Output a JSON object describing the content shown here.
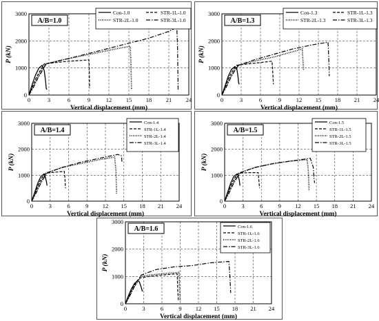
{
  "chart_data": [
    {
      "type": "line",
      "title": "A/B=1.0",
      "xlabel": "Vertical displacement (mm)",
      "ylabel": "P (kN)",
      "xlim": [
        0,
        24
      ],
      "ylim": [
        0,
        3000
      ],
      "xticks": [
        0,
        3,
        6,
        9,
        12,
        15,
        18,
        21,
        24
      ],
      "yticks": [
        0,
        1000,
        2000,
        3000
      ],
      "grid": true,
      "legend_position": "top-right",
      "legend_columns": 2,
      "series": [
        {
          "name": "Con-1.0",
          "style": "solid",
          "x": [
            0,
            0.5,
            1.0,
            1.5,
            2.0,
            2.3,
            2.5,
            2.6,
            2.7
          ],
          "y": [
            0,
            400,
            750,
            1000,
            1100,
            900,
            500,
            250,
            200
          ]
        },
        {
          "name": "STR-1L-1.0",
          "style": "dashed",
          "x": [
            0,
            0.6,
            1.2,
            1.8,
            2.3,
            4,
            6,
            8,
            9,
            9.05,
            9.1
          ],
          "y": [
            0,
            350,
            700,
            950,
            1150,
            1200,
            1250,
            1280,
            1300,
            1000,
            250
          ]
        },
        {
          "name": "STR-2L-1.0",
          "style": "dotted",
          "x": [
            0,
            0.7,
            1.4,
            2.0,
            2.5,
            5,
            8,
            11,
            14,
            15.2,
            15.3,
            15.4
          ],
          "y": [
            0,
            350,
            700,
            950,
            1150,
            1300,
            1450,
            1600,
            1750,
            1800,
            1300,
            200
          ]
        },
        {
          "name": "STR-3L-1.0",
          "style": "dashdot",
          "x": [
            0,
            0.7,
            1.4,
            2.0,
            2.6,
            6,
            10,
            14,
            18,
            21,
            22.2,
            22.3,
            22.4
          ],
          "y": [
            0,
            300,
            650,
            900,
            1150,
            1350,
            1600,
            1850,
            2100,
            2350,
            2500,
            1800,
            200
          ]
        }
      ]
    },
    {
      "type": "line",
      "title": "A/B=1.3",
      "xlabel": "Vertical displacement (mm)",
      "ylabel": "P (kN)",
      "xlim": [
        0,
        24
      ],
      "ylim": [
        0,
        3000
      ],
      "xticks": [
        0,
        3,
        6,
        9,
        12,
        15,
        18,
        21,
        24
      ],
      "yticks": [
        0,
        1000,
        2000,
        3000
      ],
      "grid": true,
      "legend_position": "top-right",
      "legend_columns": 2,
      "series": [
        {
          "name": "Con-1.3",
          "style": "solid",
          "x": [
            0,
            0.5,
            1.0,
            1.5,
            2.0,
            2.3,
            2.5,
            2.6,
            2.7
          ],
          "y": [
            0,
            350,
            700,
            950,
            1050,
            1000,
            700,
            450,
            400
          ]
        },
        {
          "name": "STR-1L-1.3",
          "style": "dashed",
          "x": [
            0,
            0.6,
            1.2,
            1.8,
            2.3,
            4,
            6,
            7.8,
            7.9,
            8.0
          ],
          "y": [
            0,
            350,
            700,
            950,
            1100,
            1150,
            1200,
            1250,
            900,
            400
          ]
        },
        {
          "name": "STR-2L-1.3",
          "style": "dotted",
          "x": [
            0,
            0.7,
            1.4,
            2.0,
            2.5,
            5,
            8,
            11,
            12.5,
            12.6,
            12.7
          ],
          "y": [
            0,
            350,
            700,
            950,
            1100,
            1250,
            1400,
            1600,
            1700,
            1300,
            900
          ]
        },
        {
          "name": "STR-3L-1.3",
          "style": "dashdot",
          "x": [
            0,
            0.7,
            1.4,
            2.0,
            2.6,
            5,
            8,
            11,
            14,
            16.5,
            16.6,
            16.7
          ],
          "y": [
            0,
            300,
            650,
            900,
            1100,
            1300,
            1500,
            1700,
            1850,
            1950,
            1500,
            700
          ]
        }
      ]
    },
    {
      "type": "line",
      "title": "A/B=1.4",
      "xlabel": "Vertical displacement (mm)",
      "ylabel": "P (kN)",
      "xlim": [
        0,
        24
      ],
      "ylim": [
        0,
        3000
      ],
      "xticks": [
        0,
        3,
        6,
        9,
        12,
        15,
        18,
        21,
        24
      ],
      "yticks": [
        0,
        1000,
        2000,
        3000
      ],
      "grid": true,
      "legend_position": "top-right",
      "legend_columns": 1,
      "series": [
        {
          "name": "Con-1.4",
          "style": "solid",
          "x": [
            0,
            0.5,
            1.0,
            1.5,
            2.0,
            2.2,
            2.4,
            2.5
          ],
          "y": [
            0,
            350,
            700,
            950,
            1050,
            950,
            750,
            600
          ]
        },
        {
          "name": "STR-1L-1.4",
          "style": "dashed",
          "x": [
            0,
            0.6,
            1.2,
            1.8,
            2.3,
            4,
            5.3,
            5.4,
            5.5
          ],
          "y": [
            0,
            350,
            700,
            950,
            1080,
            1120,
            1150,
            900,
            500
          ]
        },
        {
          "name": "STR-2L-1.4",
          "style": "dotted",
          "x": [
            0,
            0.7,
            1.4,
            2.0,
            2.5,
            5,
            8,
            11,
            13.5,
            13.7,
            13.8
          ],
          "y": [
            0,
            350,
            700,
            950,
            1100,
            1300,
            1450,
            1600,
            1700,
            1200,
            300
          ]
        },
        {
          "name": "STR-3L-1.4",
          "style": "dashdot",
          "x": [
            0,
            0.7,
            1.4,
            2.0,
            2.6,
            5,
            8,
            11,
            14,
            14.6,
            14.7
          ],
          "y": [
            0,
            300,
            650,
            900,
            1100,
            1300,
            1500,
            1650,
            1800,
            1750,
            1500
          ]
        }
      ]
    },
    {
      "type": "line",
      "title": "A/B=1.5",
      "xlabel": "Vertical displacement (mm)",
      "ylabel": "P (kN)",
      "xlim": [
        0,
        24
      ],
      "ylim": [
        0,
        3000
      ],
      "xticks": [
        0,
        3,
        6,
        9,
        12,
        15,
        18,
        21,
        24
      ],
      "yticks": [
        0,
        1000,
        2000,
        3000
      ],
      "grid": true,
      "legend_position": "top-right",
      "legend_columns": 1,
      "series": [
        {
          "name": "Con-1.5",
          "style": "solid",
          "x": [
            0,
            0.5,
            1.0,
            1.5,
            2.0,
            2.2,
            2.4,
            2.5
          ],
          "y": [
            0,
            350,
            700,
            950,
            1050,
            1000,
            800,
            600
          ]
        },
        {
          "name": "STR-1L-1.5",
          "style": "dashed",
          "x": [
            0,
            0.6,
            1.2,
            1.8,
            2.3,
            4,
            5.5,
            5.6,
            5.7
          ],
          "y": [
            0,
            350,
            700,
            950,
            1080,
            1100,
            1100,
            800,
            500
          ]
        },
        {
          "name": "STR-2L-1.5",
          "style": "dotted",
          "x": [
            0,
            0.7,
            1.4,
            2.0,
            2.5,
            5,
            8,
            11,
            13.5,
            13.7,
            13.8
          ],
          "y": [
            0,
            350,
            700,
            950,
            1100,
            1300,
            1450,
            1550,
            1600,
            1100,
            400
          ]
        },
        {
          "name": "STR-3L-1.5",
          "style": "dashdot",
          "x": [
            0,
            0.7,
            1.4,
            2.0,
            2.6,
            5,
            8,
            11,
            14,
            14.5,
            14.6,
            14.7
          ],
          "y": [
            0,
            300,
            650,
            900,
            1100,
            1300,
            1450,
            1550,
            1650,
            1300,
            900,
            700
          ]
        }
      ]
    },
    {
      "type": "line",
      "title": "A/B=1.6",
      "xlabel": "Vertical displacement (mm)",
      "ylabel": "P (kN)",
      "xlim": [
        0,
        24
      ],
      "ylim": [
        0,
        3000
      ],
      "xticks": [
        0,
        3,
        6,
        9,
        12,
        15,
        18,
        21,
        24
      ],
      "yticks": [
        0,
        1000,
        2000,
        3000
      ],
      "grid": true,
      "legend_position": "top-right",
      "legend_columns": 1,
      "series": [
        {
          "name": "Con-1.6",
          "style": "solid",
          "x": [
            0,
            0.5,
            1.0,
            1.5,
            2.0,
            2.3,
            2.6,
            2.8
          ],
          "y": [
            0,
            300,
            550,
            750,
            850,
            800,
            600,
            450
          ]
        },
        {
          "name": "STR-1L-1.6",
          "style": "dashed",
          "x": [
            0,
            0.6,
            1.2,
            1.8,
            2.4,
            4,
            6,
            8.5,
            8.6,
            8.7
          ],
          "y": [
            0,
            300,
            600,
            800,
            950,
            1000,
            1050,
            1100,
            500,
            100
          ]
        },
        {
          "name": "STR-2L-1.6",
          "style": "dotted",
          "x": [
            0,
            0.7,
            1.4,
            2.0,
            2.6,
            4,
            6,
            8.8,
            8.9,
            9.0
          ],
          "y": [
            0,
            300,
            600,
            800,
            1000,
            1050,
            1100,
            1150,
            600,
            100
          ]
        },
        {
          "name": "STR-3L-1.6",
          "style": "dashdot",
          "x": [
            0,
            0.7,
            1.4,
            2.0,
            2.6,
            5,
            8,
            11,
            14,
            17,
            17.2,
            17.3
          ],
          "y": [
            0,
            280,
            600,
            850,
            1050,
            1250,
            1350,
            1400,
            1500,
            1550,
            900,
            400
          ]
        }
      ]
    }
  ]
}
